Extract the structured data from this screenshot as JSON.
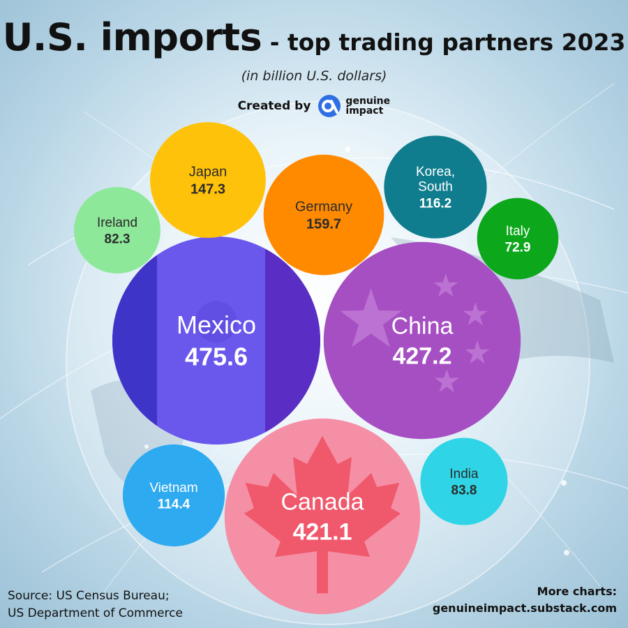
{
  "title": {
    "main": "U.S. imports",
    "sub": " - top trading partners 2023"
  },
  "unit_note": "(in billion U.S. dollars)",
  "credit": {
    "label": "Created by",
    "brand": "genuine impact",
    "brand_color": "#2f6fe4"
  },
  "chart_data": {
    "type": "bubble",
    "title": "U.S. imports - top trading partners 2023",
    "unit": "billion U.S. dollars",
    "series": [
      {
        "name": "Mexico",
        "value": 475.6,
        "color": "#5b4ae0"
      },
      {
        "name": "China",
        "value": 427.2,
        "color": "#a64fc2"
      },
      {
        "name": "Canada",
        "value": 421.1,
        "color": "#f58fa6"
      },
      {
        "name": "Germany",
        "value": 159.7,
        "color": "#ff8a00"
      },
      {
        "name": "Japan",
        "value": 147.3,
        "color": "#ffc20a"
      },
      {
        "name": "Korea, South",
        "value": 116.2,
        "color": "#0f7d8e"
      },
      {
        "name": "Vietnam",
        "value": 114.4,
        "color": "#2eaaf0"
      },
      {
        "name": "India",
        "value": 83.8,
        "color": "#2fd5e6"
      },
      {
        "name": "Ireland",
        "value": 82.3,
        "color": "#8ee89a"
      },
      {
        "name": "Italy",
        "value": 72.9,
        "color": "#0da71c"
      }
    ]
  },
  "footer": {
    "source_line1": "Source: US Census Bureau;",
    "source_line2": "US Department of Commerce",
    "more_label": "More charts:",
    "more_url": "genuineimpact.substack.com"
  }
}
